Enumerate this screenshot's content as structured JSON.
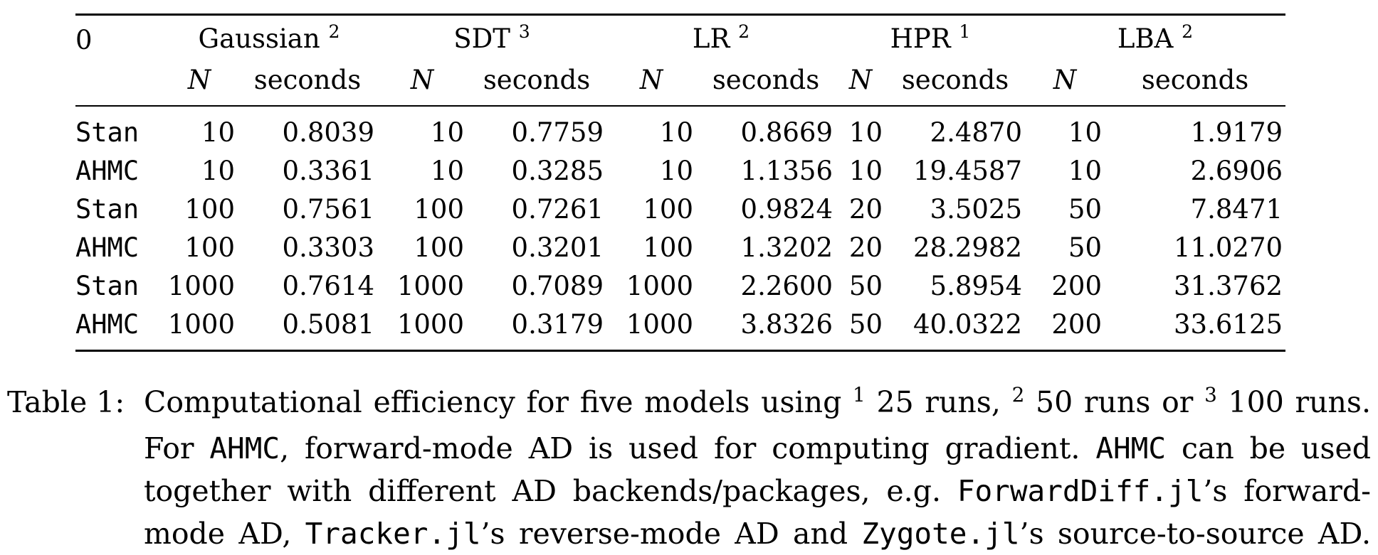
{
  "table": {
    "corner": "0",
    "groups": [
      {
        "name": "Gaussian",
        "sup": "2"
      },
      {
        "name": "SDT",
        "sup": "3"
      },
      {
        "name": "LR",
        "sup": "2"
      },
      {
        "name": "HPR",
        "sup": "1"
      },
      {
        "name": "LBA",
        "sup": "2"
      }
    ],
    "sub_n": "N",
    "sub_seconds": "seconds",
    "rows": [
      {
        "method": "Stan",
        "cells": [
          "10",
          "0.8039",
          "10",
          "0.7759",
          "10",
          "0.8669",
          "10",
          "2.4870",
          "10",
          "1.9179"
        ]
      },
      {
        "method": "AHMC",
        "cells": [
          "10",
          "0.3361",
          "10",
          "0.3285",
          "10",
          "1.1356",
          "10",
          "19.4587",
          "10",
          "2.6906"
        ]
      },
      {
        "method": "Stan",
        "cells": [
          "100",
          "0.7561",
          "100",
          "0.7261",
          "100",
          "0.9824",
          "20",
          "3.5025",
          "50",
          "7.8471"
        ]
      },
      {
        "method": "AHMC",
        "cells": [
          "100",
          "0.3303",
          "100",
          "0.3201",
          "100",
          "1.3202",
          "20",
          "28.2982",
          "50",
          "11.0270"
        ]
      },
      {
        "method": "Stan",
        "cells": [
          "1000",
          "0.7614",
          "1000",
          "0.7089",
          "1000",
          "2.2600",
          "50",
          "5.8954",
          "200",
          "31.3762"
        ]
      },
      {
        "method": "AHMC",
        "cells": [
          "1000",
          "0.5081",
          "1000",
          "0.3179",
          "1000",
          "3.8326",
          "50",
          "40.0322",
          "200",
          "33.6125"
        ]
      }
    ]
  },
  "caption": {
    "label": "Table 1:",
    "line1": {
      "a": "Computational efficiency for five models using ",
      "s1": "1",
      "b": " 25 runs, ",
      "s2": "2",
      "c": " 50 runs or ",
      "s3": "3",
      "d": " 100 runs."
    },
    "line2": {
      "a": "For ",
      "code1": "AHMC",
      "b": ", forward-mode AD is used for computing gradient. ",
      "code2": "AHMC",
      "c": " can be used"
    },
    "line3": {
      "a": "together with different AD backends/packages, e.g. ",
      "code1": "ForwardDiff.jl",
      "b": "’s forward-"
    },
    "line4": {
      "a": "mode AD, ",
      "code1": "Tracker.jl",
      "b": "’s reverse-mode AD and ",
      "code2": "Zygote.jl",
      "c": "’s source-to-source AD."
    }
  }
}
